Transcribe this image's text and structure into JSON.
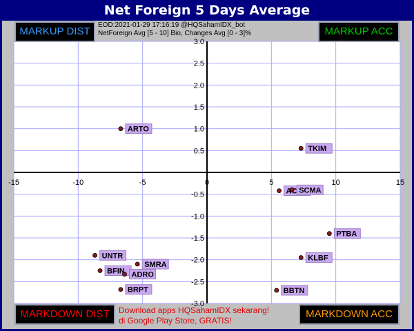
{
  "title": "Net Foreign 5 Days Average",
  "info": {
    "line1": "EOD:2021-01-29 17:16:19 @HQSahamIDX_bot",
    "line2": "NetForeign Avg [5 - 10] Bio, Changes Avg [0 - 3]%"
  },
  "quadrants": {
    "top_left": {
      "label": "MARKUP DIST",
      "color": "#3399ff"
    },
    "top_right": {
      "label": "MARKUP ACC",
      "color": "#00cc00"
    },
    "bottom_left": {
      "label": "MARKDOWN DIST",
      "color": "#ff0000"
    },
    "bottom_right": {
      "label": "MARKDOWN ACC",
      "color": "#ff9900"
    }
  },
  "promo": {
    "line1": "Download apps HQSahamIDX sekarang!",
    "line2": "di Google Play Store, GRATIS!"
  },
  "colors": {
    "background": "#000080",
    "plot_area": "#ffffff",
    "grid": "#aaaaff",
    "point": "#8b1a1a",
    "label_bg": "#c9a8f0"
  },
  "chart_data": {
    "type": "scatter",
    "xlim": [
      -15,
      15
    ],
    "ylim": [
      -3,
      3
    ],
    "x_ticks": [
      -15,
      -10,
      -5,
      0,
      5,
      10,
      15
    ],
    "x_tick_labels": [
      "-15",
      "-10",
      "-5",
      "0",
      "5",
      "10",
      "15"
    ],
    "y_ticks": [
      3,
      2.5,
      2,
      1.5,
      1,
      0.5,
      -0.5,
      -1,
      -1.5,
      -2,
      -2.5,
      -3
    ],
    "y_tick_labels": [
      "3.0",
      "2.5",
      "2.0",
      "1.5",
      "1.0",
      "0.5",
      "-0.5",
      "-1.0",
      "-1.5",
      "-2.0",
      "-2.5",
      "-3.0"
    ],
    "grid": true,
    "points": [
      {
        "label": "ARTO",
        "x": -6.7,
        "y": 1.0
      },
      {
        "label": "TKIM",
        "x": 7.3,
        "y": 0.55
      },
      {
        "label": "ACES",
        "x": 5.6,
        "y": -0.42
      },
      {
        "label": "SCMA",
        "x": 6.6,
        "y": -0.4
      },
      {
        "label": "PTBA",
        "x": 9.5,
        "y": -1.4
      },
      {
        "label": "KLBF",
        "x": 7.3,
        "y": -1.95
      },
      {
        "label": "BBTN",
        "x": 5.4,
        "y": -2.7
      },
      {
        "label": "UNTR",
        "x": -8.7,
        "y": -1.9
      },
      {
        "label": "SMRA",
        "x": -5.4,
        "y": -2.1
      },
      {
        "label": "BFIN",
        "x": -8.3,
        "y": -2.25
      },
      {
        "label": "ADRO",
        "x": -6.4,
        "y": -2.33
      },
      {
        "label": "BRPT",
        "x": -6.7,
        "y": -2.68
      }
    ]
  }
}
